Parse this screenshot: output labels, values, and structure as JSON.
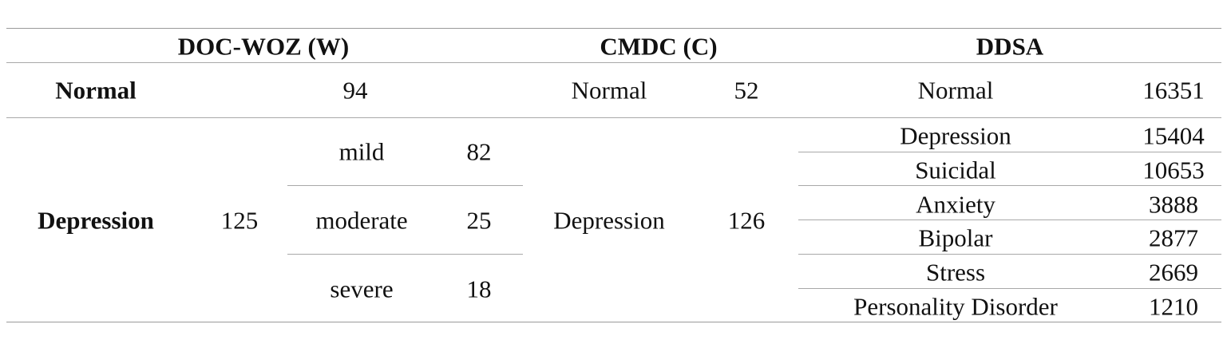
{
  "header": {
    "groups": [
      "DOC-WOZ (W)",
      "CMDC (C)",
      "DDSA"
    ]
  },
  "doc_woz": {
    "normal": {
      "label": "Normal",
      "count": 94
    },
    "depression": {
      "label": "Depression",
      "count": 125,
      "levels": [
        {
          "label": "mild",
          "count": 82
        },
        {
          "label": "moderate",
          "count": 25
        },
        {
          "label": "severe",
          "count": 18
        }
      ]
    }
  },
  "cmdc": {
    "normal": {
      "label": "Normal",
      "count": 52
    },
    "depression": {
      "label": "Depression",
      "count": 126
    }
  },
  "ddsa": {
    "rows": [
      {
        "label": "Normal",
        "count": 16351
      },
      {
        "label": "Depression",
        "count": 15404
      },
      {
        "label": "Suicidal",
        "count": 10653
      },
      {
        "label": "Anxiety",
        "count": 3888
      },
      {
        "label": "Bipolar",
        "count": 2877
      },
      {
        "label": "Stress",
        "count": 2669
      },
      {
        "label": "Personality Disorder",
        "count": 1210
      }
    ]
  }
}
